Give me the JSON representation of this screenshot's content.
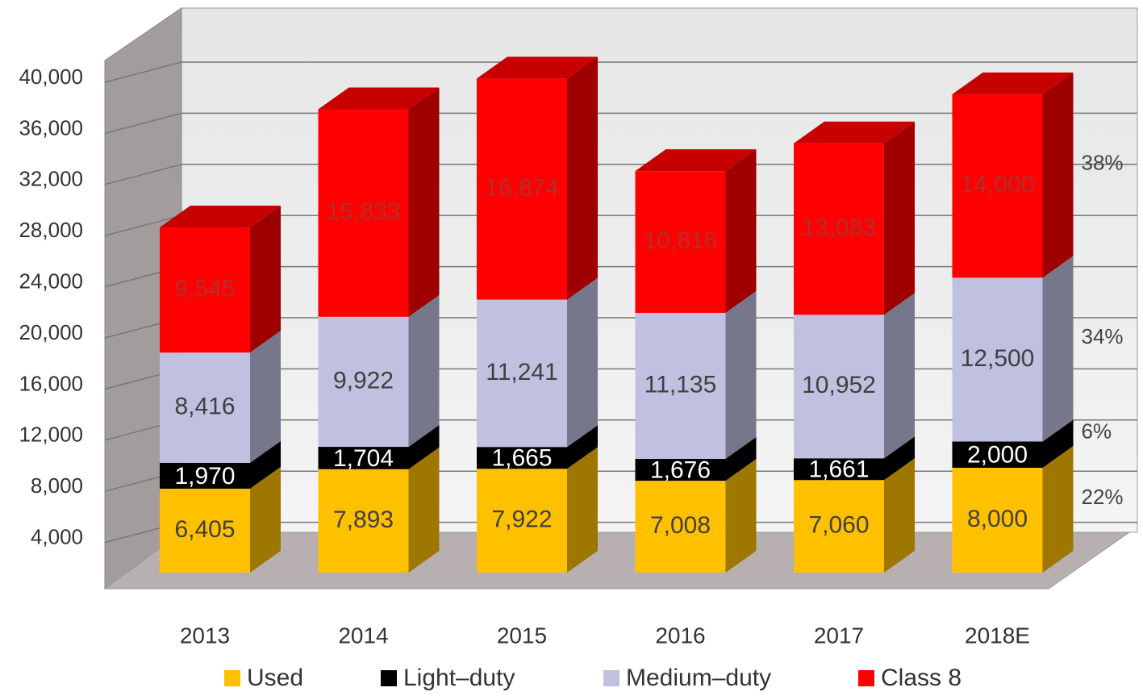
{
  "chart_data": {
    "type": "bar3d_stacked",
    "categories": [
      "2013",
      "2014",
      "2015",
      "2016",
      "2017",
      "2018E"
    ],
    "series": [
      {
        "name": "Used",
        "color": "#ffc000",
        "values": [
          6405,
          7893,
          7922,
          7008,
          7060,
          8000
        ],
        "value_labels": [
          "6,405",
          "7,893",
          "7,922",
          "7,008",
          "7,060",
          "8,000"
        ]
      },
      {
        "name": "Light–duty",
        "color": "#000000",
        "values": [
          1970,
          1704,
          1665,
          1676,
          1661,
          2000
        ],
        "value_labels": [
          "1,970",
          "1,704",
          "1,665",
          "1,676",
          "1,661",
          "2,000"
        ]
      },
      {
        "name": "Medium–duty",
        "color": "#c0c0e0",
        "values": [
          8416,
          9922,
          11241,
          11135,
          10952,
          12500
        ],
        "value_labels": [
          "8,416",
          "9,922",
          "11,241",
          "11,135",
          "10,952",
          "12,500"
        ]
      },
      {
        "name": "Class 8",
        "color": "#ff0000",
        "values": [
          9545,
          15833,
          16874,
          10816,
          13083,
          14000
        ],
        "value_labels": [
          "9,545",
          "15,833",
          "16,874",
          "10,816",
          "13,083",
          "14,000"
        ]
      }
    ],
    "ylim": [
      0,
      40000
    ],
    "yticks": [
      {
        "value": 4000,
        "label": "4,000"
      },
      {
        "value": 8000,
        "label": "8,000"
      },
      {
        "value": 12000,
        "label": "12,000"
      },
      {
        "value": 16000,
        "label": "16,000"
      },
      {
        "value": 20000,
        "label": "20,000"
      },
      {
        "value": 24000,
        "label": "24,000"
      },
      {
        "value": 28000,
        "label": "28,000"
      },
      {
        "value": 32000,
        "label": "32,000"
      },
      {
        "value": 36000,
        "label": "36,000"
      },
      {
        "value": 40000,
        "label": "40,000"
      }
    ],
    "grid": true,
    "legend": "bottom",
    "annotations": [
      "22%",
      "6%",
      "34%",
      "38%"
    ]
  }
}
